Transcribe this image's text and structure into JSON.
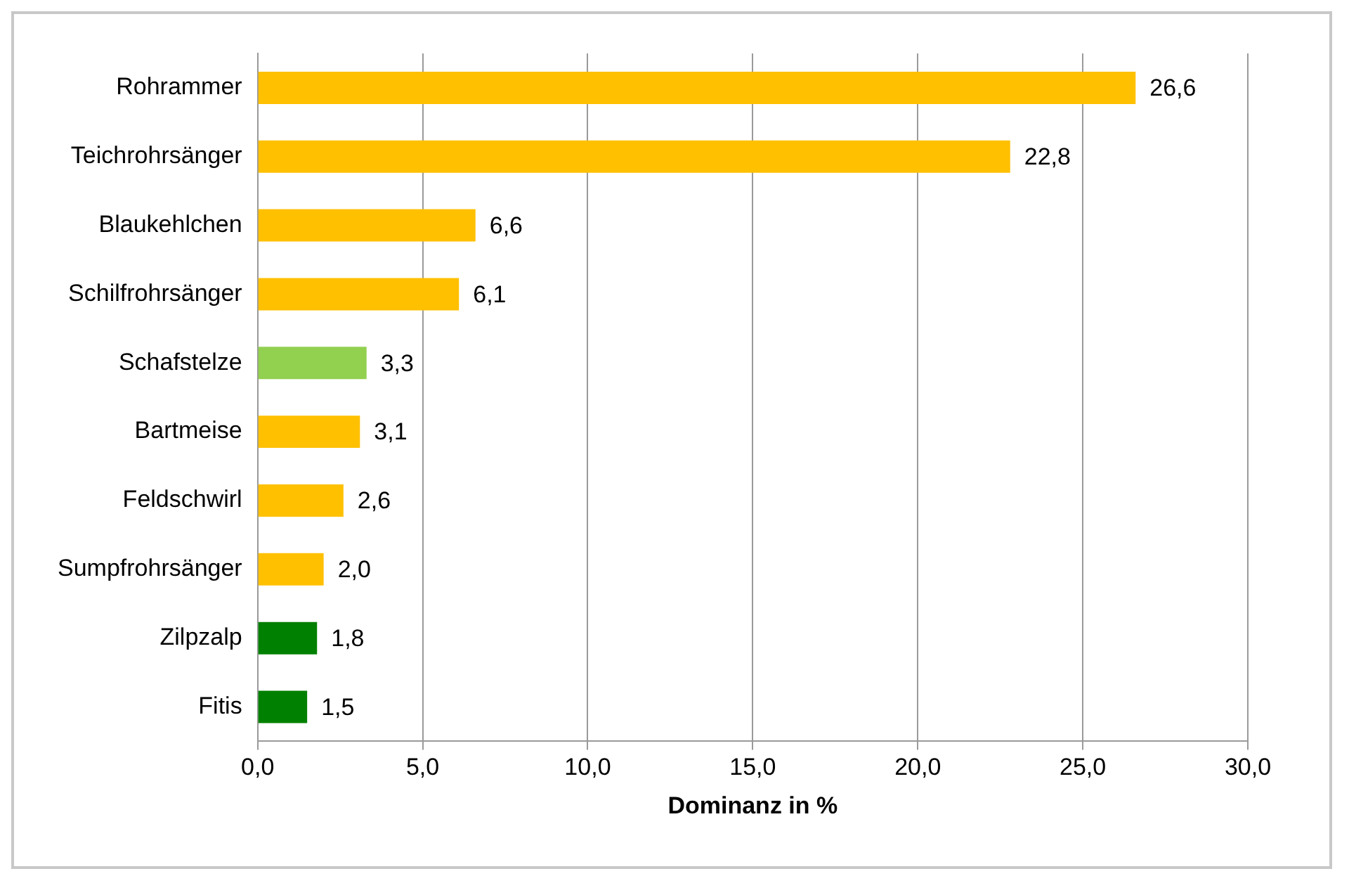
{
  "chart_data": {
    "type": "bar",
    "orientation": "horizontal",
    "xlabel": "Dominanz in %",
    "categories": [
      "Rohrammer",
      "Teichrohrsänger",
      "Blaukehlchen",
      "Schilfrohrsänger",
      "Schafstelze",
      "Bartmeise",
      "Feldschwirl",
      "Sumpfrohrsänger",
      "Zilpzalp",
      "Fitis"
    ],
    "values": [
      26.6,
      22.8,
      6.6,
      6.1,
      3.3,
      3.1,
      2.6,
      2.0,
      1.8,
      1.5
    ],
    "colors": [
      "#ffc000",
      "#ffc000",
      "#ffc000",
      "#ffc000",
      "#92d050",
      "#ffc000",
      "#ffc000",
      "#ffc000",
      "#008000",
      "#008000"
    ],
    "value_labels": [
      "26,6",
      "22,8",
      "6,6",
      "6,1",
      "3,3",
      "3,1",
      "2,6",
      "2,0",
      "1,8",
      "1,5"
    ],
    "xlim": [
      0,
      30
    ],
    "xticks": [
      {
        "value": 0,
        "label": "0,0"
      },
      {
        "value": 5,
        "label": "5,0"
      },
      {
        "value": 10,
        "label": "10,0"
      },
      {
        "value": 15,
        "label": "15,0"
      },
      {
        "value": 20,
        "label": "20,0"
      },
      {
        "value": 25,
        "label": "25,0"
      },
      {
        "value": 30,
        "label": "30,0"
      }
    ],
    "grid": "x",
    "legend": false
  }
}
